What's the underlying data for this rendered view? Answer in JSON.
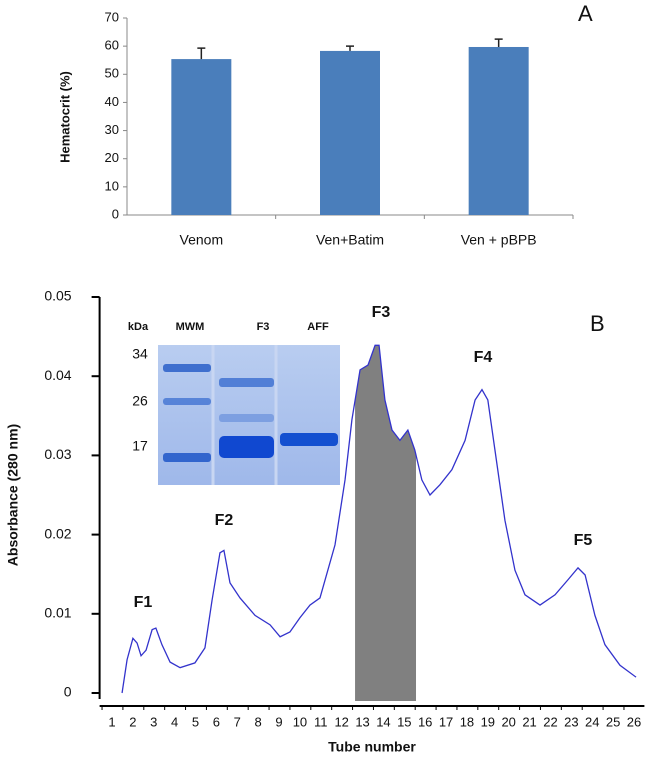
{
  "chart_data": [
    {
      "type": "bar",
      "panel_label": "A",
      "ylabel": "Hematocrit (%)",
      "categories": [
        "Venom",
        "Ven+Batim",
        "Ven + pBPB"
      ],
      "values": [
        55.4,
        58.3,
        59.7
      ],
      "errors": [
        3.9,
        1.7,
        2.8
      ],
      "color": "#4a7ebb",
      "ylim": [
        0,
        70
      ],
      "yticks": [
        0,
        10,
        20,
        30,
        40,
        50,
        60,
        70
      ]
    },
    {
      "type": "line",
      "panel_label": "B",
      "xlabel": "Tube number",
      "ylabel": "Absorbance (280 nm)",
      "x": [
        1.48,
        1.72,
        2.0,
        2.2,
        2.39,
        2.63,
        2.92,
        3.1,
        3.39,
        3.78,
        4.26,
        4.97,
        5.45,
        5.79,
        6.17,
        6.36,
        6.65,
        7.13,
        7.85,
        8.57,
        9.05,
        9.52,
        10.0,
        10.48,
        10.96,
        11.68,
        12.16,
        12.49,
        12.88,
        13.26,
        13.6,
        13.79,
        14.07,
        14.41,
        14.79,
        15.17,
        15.5,
        15.84,
        16.23,
        16.71,
        17.28,
        17.91,
        18.39,
        18.72,
        19.0,
        19.34,
        19.82,
        20.3,
        20.78,
        21.5,
        22.22,
        22.84,
        23.32,
        23.66,
        24.13,
        24.61,
        25.33,
        26.1
      ],
      "series": [
        {
          "color": "#3333cc",
          "values": [
            0,
            0.0042,
            0.0069,
            0.0063,
            0.0047,
            0.0054,
            0.008,
            0.0082,
            0.0061,
            0.0039,
            0.0032,
            0.0038,
            0.0057,
            0.0117,
            0.0177,
            0.018,
            0.0139,
            0.012,
            0.0098,
            0.0086,
            0.0071,
            0.0077,
            0.0095,
            0.0111,
            0.012,
            0.0187,
            0.0269,
            0.0345,
            0.0408,
            0.0414,
            0.0439,
            0.0439,
            0.037,
            0.0332,
            0.0319,
            0.0332,
            0.0307,
            0.0269,
            0.025,
            0.0263,
            0.0282,
            0.0319,
            0.037,
            0.0383,
            0.037,
            0.0307,
            0.0218,
            0.0155,
            0.0124,
            0.0111,
            0.0124,
            0.0143,
            0.0158,
            0.0149,
            0.0098,
            0.0061,
            0.0035,
            0.002
          ]
        }
      ],
      "highlight": {
        "x": [
          12.64,
          15.56
        ],
        "color": "#808080"
      },
      "annotations": [
        "F1",
        "F2",
        "F3",
        "F4",
        "F5"
      ],
      "xlim": [
        0.5,
        26.5
      ],
      "xticks": [
        1,
        2,
        3,
        4,
        5,
        6,
        7,
        8,
        9,
        10,
        11,
        12,
        13,
        14,
        15,
        16,
        17,
        18,
        19,
        20,
        21,
        22,
        23,
        24,
        25,
        26
      ],
      "ylim": [
        0,
        0.05
      ],
      "yticks": [
        0,
        0.01,
        0.02,
        0.03,
        0.04,
        0.05
      ],
      "inset": {
        "header": [
          "kDa",
          "MWM",
          "F3",
          "AFF"
        ],
        "markers": [
          "34",
          "26",
          "17"
        ]
      }
    }
  ]
}
